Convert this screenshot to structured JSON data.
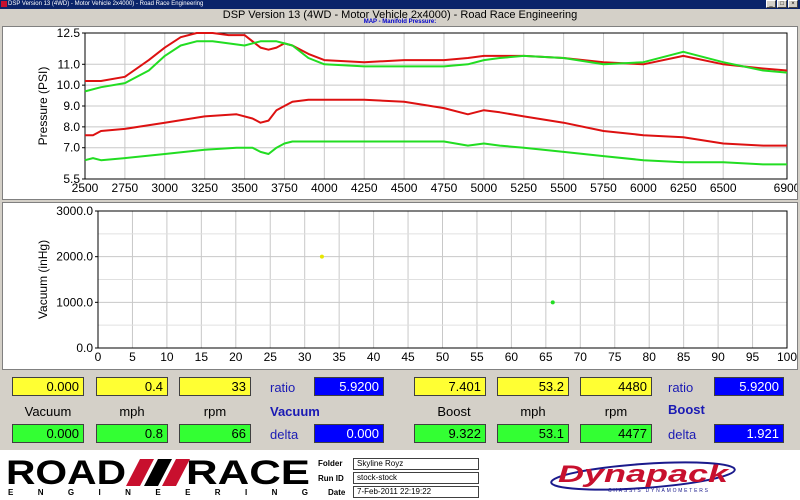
{
  "window": {
    "titlebar": "DSP Version 13 (4WD) - Motor Vehicle 2x4000) - Road Race Engineering"
  },
  "chart_data": [
    {
      "type": "line",
      "title": "DSP Version 13 (4WD - Motor Vehicle 2x4000) - Road Race Engineering",
      "subtitle": "MAP - Manifold Pressure:",
      "xlabel": "",
      "ylabel": "Pressure (PSI)",
      "xlim": [
        2500,
        6900
      ],
      "ylim": [
        5.5,
        12.5
      ],
      "x_ticks": [
        "2500",
        "2750",
        "3000",
        "3250",
        "3500",
        "3750",
        "4000",
        "4250",
        "4500",
        "4750",
        "5000",
        "5250",
        "5500",
        "5750",
        "6000",
        "6250",
        "6500",
        "6900"
      ],
      "y_ticks": [
        "5.5",
        "7.0",
        "8.0",
        "9.0",
        "10.0",
        "11.0",
        "12.5"
      ],
      "grid": true,
      "series": [
        {
          "color": "#dd1111",
          "x": [
            2500,
            2600,
            2750,
            2900,
            3000,
            3100,
            3200,
            3300,
            3400,
            3500,
            3600,
            3650,
            3700,
            3750,
            3800,
            3900,
            4000,
            4250,
            4500,
            4750,
            4900,
            5000,
            5100,
            5250,
            5500,
            5750,
            6000,
            6250,
            6500,
            6750,
            6900
          ],
          "y": [
            10.2,
            10.2,
            10.4,
            11.2,
            11.8,
            12.3,
            12.5,
            12.5,
            12.4,
            12.4,
            11.8,
            11.7,
            11.8,
            12.0,
            11.9,
            11.5,
            11.2,
            11.1,
            11.2,
            11.2,
            11.3,
            11.4,
            11.4,
            11.4,
            11.3,
            11.1,
            11.0,
            11.4,
            11.0,
            10.8,
            10.7
          ]
        },
        {
          "color": "#22dd22",
          "x": [
            2500,
            2600,
            2750,
            2900,
            3000,
            3100,
            3200,
            3300,
            3400,
            3500,
            3600,
            3650,
            3700,
            3750,
            3800,
            3900,
            4000,
            4250,
            4500,
            4750,
            4900,
            5000,
            5100,
            5250,
            5500,
            5750,
            6000,
            6250,
            6500,
            6750,
            6900
          ],
          "y": [
            9.7,
            9.9,
            10.1,
            10.7,
            11.4,
            11.9,
            12.1,
            12.1,
            12.0,
            11.9,
            12.1,
            12.1,
            12.1,
            12.0,
            11.9,
            11.3,
            11.0,
            10.9,
            10.9,
            10.9,
            11.0,
            11.2,
            11.3,
            11.4,
            11.3,
            11.0,
            11.1,
            11.6,
            11.1,
            10.7,
            10.6
          ]
        },
        {
          "color": "#dd1111",
          "x": [
            2500,
            2550,
            2600,
            2750,
            3000,
            3250,
            3450,
            3550,
            3600,
            3650,
            3700,
            3750,
            3800,
            3900,
            4000,
            4250,
            4500,
            4750,
            4900,
            5000,
            5100,
            5250,
            5500,
            5750,
            6000,
            6250,
            6500,
            6750,
            6900
          ],
          "y": [
            7.6,
            7.6,
            7.8,
            7.9,
            8.2,
            8.5,
            8.6,
            8.4,
            8.2,
            8.3,
            8.8,
            9.0,
            9.2,
            9.3,
            9.3,
            9.3,
            9.2,
            8.9,
            8.6,
            8.8,
            8.7,
            8.5,
            8.2,
            7.8,
            7.6,
            7.5,
            7.2,
            7.1,
            7.1
          ]
        },
        {
          "color": "#22dd22",
          "x": [
            2500,
            2550,
            2600,
            2750,
            3000,
            3250,
            3450,
            3550,
            3600,
            3650,
            3700,
            3750,
            3800,
            3900,
            4000,
            4250,
            4500,
            4750,
            4900,
            5000,
            5100,
            5250,
            5500,
            5750,
            6000,
            6250,
            6500,
            6750,
            6900
          ],
          "y": [
            6.4,
            6.5,
            6.4,
            6.5,
            6.7,
            6.9,
            7.0,
            7.0,
            6.8,
            6.7,
            7.0,
            7.2,
            7.3,
            7.3,
            7.3,
            7.3,
            7.3,
            7.3,
            7.1,
            7.2,
            7.1,
            7.0,
            6.8,
            6.6,
            6.4,
            6.3,
            6.3,
            6.2,
            6.2
          ]
        }
      ]
    },
    {
      "type": "scatter",
      "xlabel": "",
      "ylabel": "Vacuum (inHg)",
      "xlim": [
        0,
        100
      ],
      "ylim": [
        0,
        3000
      ],
      "x_ticks": [
        "0",
        "5",
        "10",
        "15",
        "20",
        "25",
        "30",
        "35",
        "40",
        "45",
        "50",
        "55",
        "60",
        "65",
        "70",
        "75",
        "80",
        "85",
        "90",
        "95",
        "100"
      ],
      "y_ticks": [
        "0.0",
        "1000.0",
        "2000.0",
        "3000.0"
      ],
      "y_minor_ticks": [
        "500.0",
        "1500.0",
        "2500.0"
      ],
      "grid": true,
      "series": [
        {
          "color": "#e6e600",
          "x": [
            32.5
          ],
          "y": [
            2000
          ]
        },
        {
          "color": "#22dd22",
          "x": [
            66
          ],
          "y": [
            1000
          ]
        }
      ]
    }
  ],
  "readouts": {
    "left": {
      "yellow": [
        "0.000",
        "0.4",
        "33"
      ],
      "green": [
        "0.000",
        "0.8",
        "66"
      ],
      "labels": [
        "Vacuum",
        "mph",
        "rpm"
      ],
      "ratio_label": "ratio",
      "ratio_value": "5.9200",
      "mode_label": "Vacuum",
      "delta_label": "delta",
      "delta_value": "0.000"
    },
    "right": {
      "yellow": [
        "7.401",
        "53.2",
        "4480"
      ],
      "green": [
        "9.322",
        "53.1",
        "4477"
      ],
      "labels": [
        "Boost",
        "mph",
        "rpm"
      ],
      "ratio_label": "ratio",
      "ratio_value": "5.9200",
      "mode_label": "Boost",
      "delta_label": "delta",
      "delta_value": "1.921"
    }
  },
  "footer": {
    "logo_text_1": "ROAD",
    "logo_text_2": "RACE",
    "logo_subtext": "ENGINEERING",
    "folder_label": "Folder",
    "folder_value": "Skyline Royz",
    "runid_label": "Run ID",
    "runid_value": "stock-stock",
    "date_label": "Date",
    "date_value": "7-Feb-2011 22:19:22",
    "dynapack_logo": "Dynapack",
    "dynapack_sub": "CHASSIS DYNAMOMETERS"
  }
}
